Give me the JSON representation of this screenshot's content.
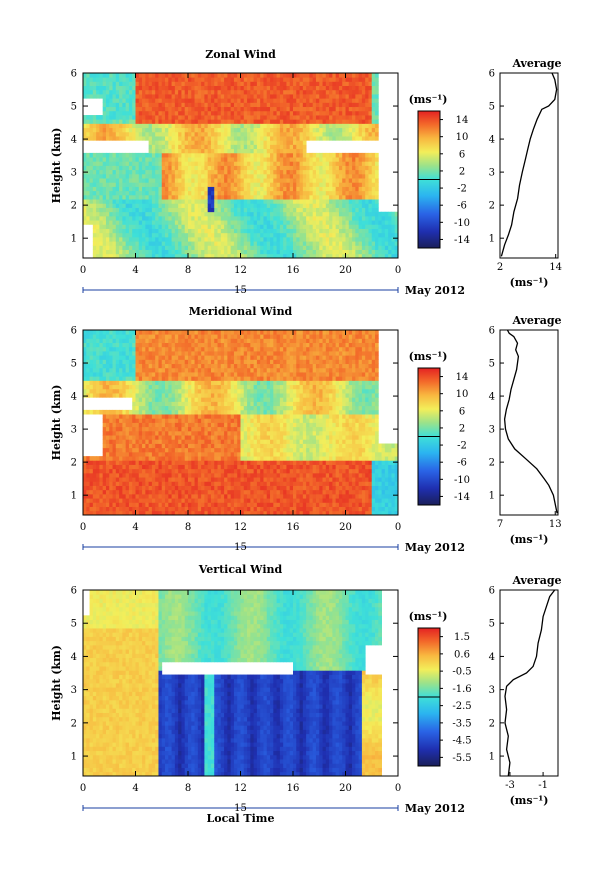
{
  "figure": {
    "xlabel": "Local Time",
    "date_label": "May 2012",
    "day_label": "15"
  },
  "chart_data": [
    {
      "type": "heatmap",
      "title": "Zonal Wind",
      "ylabel": "Height (km)",
      "xlabel": "Local Time",
      "x_ticks": [
        "0",
        "4",
        "8",
        "12",
        "16",
        "20",
        "0"
      ],
      "x_tick_values": [
        0,
        4,
        8,
        12,
        16,
        20,
        24
      ],
      "xlim": [
        0,
        24
      ],
      "y_ticks": [
        "1",
        "2",
        "3",
        "4",
        "5",
        "6"
      ],
      "y_tick_values": [
        1,
        2,
        3,
        4,
        5,
        6
      ],
      "ylim": [
        0.4,
        6
      ],
      "colorbar": {
        "label": "(ms⁻¹)",
        "ticks": [
          "14",
          "10",
          "6",
          "2",
          "-2",
          "-6",
          "-10",
          "-14"
        ],
        "range": [
          -16,
          16
        ]
      },
      "note": "blank (white) where no data"
    },
    {
      "type": "line",
      "title": "Average",
      "xlabel": "(ms⁻¹)",
      "x_ticks": [
        "2",
        "14"
      ],
      "xlim": [
        2,
        14.5
      ],
      "ylim": [
        0.4,
        6
      ],
      "y_ticks": [
        "1",
        "2",
        "3",
        "4",
        "5",
        "6"
      ],
      "series": [
        {
          "x": [
            2.3,
            3.0,
            3.8,
            4.5,
            5.0,
            5.8,
            6.2,
            6.8,
            7.5,
            8.0,
            8.5,
            9.2,
            10.0,
            11.0,
            12.5,
            13.8,
            14.2,
            13.8,
            13.2
          ],
          "y": [
            0.45,
            0.8,
            1.1,
            1.4,
            1.8,
            2.2,
            2.6,
            3.0,
            3.4,
            3.7,
            4.0,
            4.3,
            4.6,
            4.9,
            5.0,
            5.2,
            5.5,
            5.8,
            6.0
          ]
        }
      ]
    },
    {
      "type": "heatmap",
      "title": "Meridional Wind",
      "ylabel": "Height (km)",
      "x_ticks": [
        "0",
        "4",
        "8",
        "12",
        "16",
        "20",
        "0"
      ],
      "x_tick_values": [
        0,
        4,
        8,
        12,
        16,
        20,
        24
      ],
      "xlim": [
        0,
        24
      ],
      "y_ticks": [
        "1",
        "2",
        "3",
        "4",
        "5",
        "6"
      ],
      "y_tick_values": [
        1,
        2,
        3,
        4,
        5,
        6
      ],
      "ylim": [
        0.4,
        6
      ],
      "colorbar": {
        "label": "(ms⁻¹)",
        "ticks": [
          "14",
          "10",
          "6",
          "2",
          "-2",
          "-6",
          "-10",
          "-14"
        ],
        "range": [
          -16,
          16
        ]
      }
    },
    {
      "type": "line",
      "title": "Average",
      "xlabel": "(ms⁻¹)",
      "x_ticks": [
        "7",
        "13"
      ],
      "xlim": [
        7,
        13.3
      ],
      "ylim": [
        0.4,
        6
      ],
      "y_ticks": [
        "1",
        "2",
        "3",
        "4",
        "5",
        "6"
      ],
      "series": [
        {
          "x": [
            13.2,
            12.8,
            12.3,
            11.8,
            11.0,
            9.8,
            8.6,
            7.9,
            7.6,
            7.5,
            7.7,
            8.0,
            8.2,
            8.5,
            8.8,
            8.9,
            9.0,
            8.7,
            8.9,
            8.5,
            8.0,
            7.8
          ],
          "y": [
            0.45,
            1.0,
            1.3,
            1.5,
            1.8,
            2.1,
            2.4,
            2.7,
            3.0,
            3.3,
            3.6,
            3.9,
            4.2,
            4.5,
            4.8,
            5.0,
            5.2,
            5.4,
            5.6,
            5.8,
            5.9,
            6.0
          ]
        }
      ]
    },
    {
      "type": "heatmap",
      "title": "Vertical Wind",
      "ylabel": "Height (km)",
      "xlabel": "Local Time",
      "x_ticks": [
        "0",
        "4",
        "8",
        "12",
        "16",
        "20",
        "0"
      ],
      "x_tick_values": [
        0,
        4,
        8,
        12,
        16,
        20,
        24
      ],
      "xlim": [
        0,
        24
      ],
      "y_ticks": [
        "1",
        "2",
        "3",
        "4",
        "5",
        "6"
      ],
      "y_tick_values": [
        1,
        2,
        3,
        4,
        5,
        6
      ],
      "ylim": [
        0.4,
        6
      ],
      "colorbar": {
        "label": "(ms⁻¹)",
        "ticks": [
          "1.5",
          "0.6",
          "-0.5",
          "-1.6",
          "-2.5",
          "-3.5",
          "-4.5",
          "-5.5"
        ],
        "range": [
          -6,
          2
        ]
      }
    },
    {
      "type": "line",
      "title": "Average",
      "xlabel": "(ms⁻¹)",
      "x_ticks": [
        "-3",
        "-1"
      ],
      "xlim": [
        -3.6,
        -0.1
      ],
      "ylim": [
        0.4,
        6
      ],
      "y_ticks": [
        "1",
        "2",
        "3",
        "4",
        "5",
        "6"
      ],
      "series": [
        {
          "x": [
            -3.1,
            -3.0,
            -3.2,
            -3.1,
            -3.3,
            -3.2,
            -3.3,
            -3.2,
            -2.8,
            -2.0,
            -1.6,
            -1.4,
            -1.3,
            -1.1,
            -1.0,
            -0.8,
            -0.6,
            -0.3
          ],
          "y": [
            0.4,
            0.8,
            1.2,
            1.6,
            2.0,
            2.4,
            2.8,
            3.1,
            3.3,
            3.5,
            3.7,
            4.0,
            4.4,
            4.8,
            5.2,
            5.5,
            5.8,
            6.0
          ]
        }
      ]
    }
  ]
}
